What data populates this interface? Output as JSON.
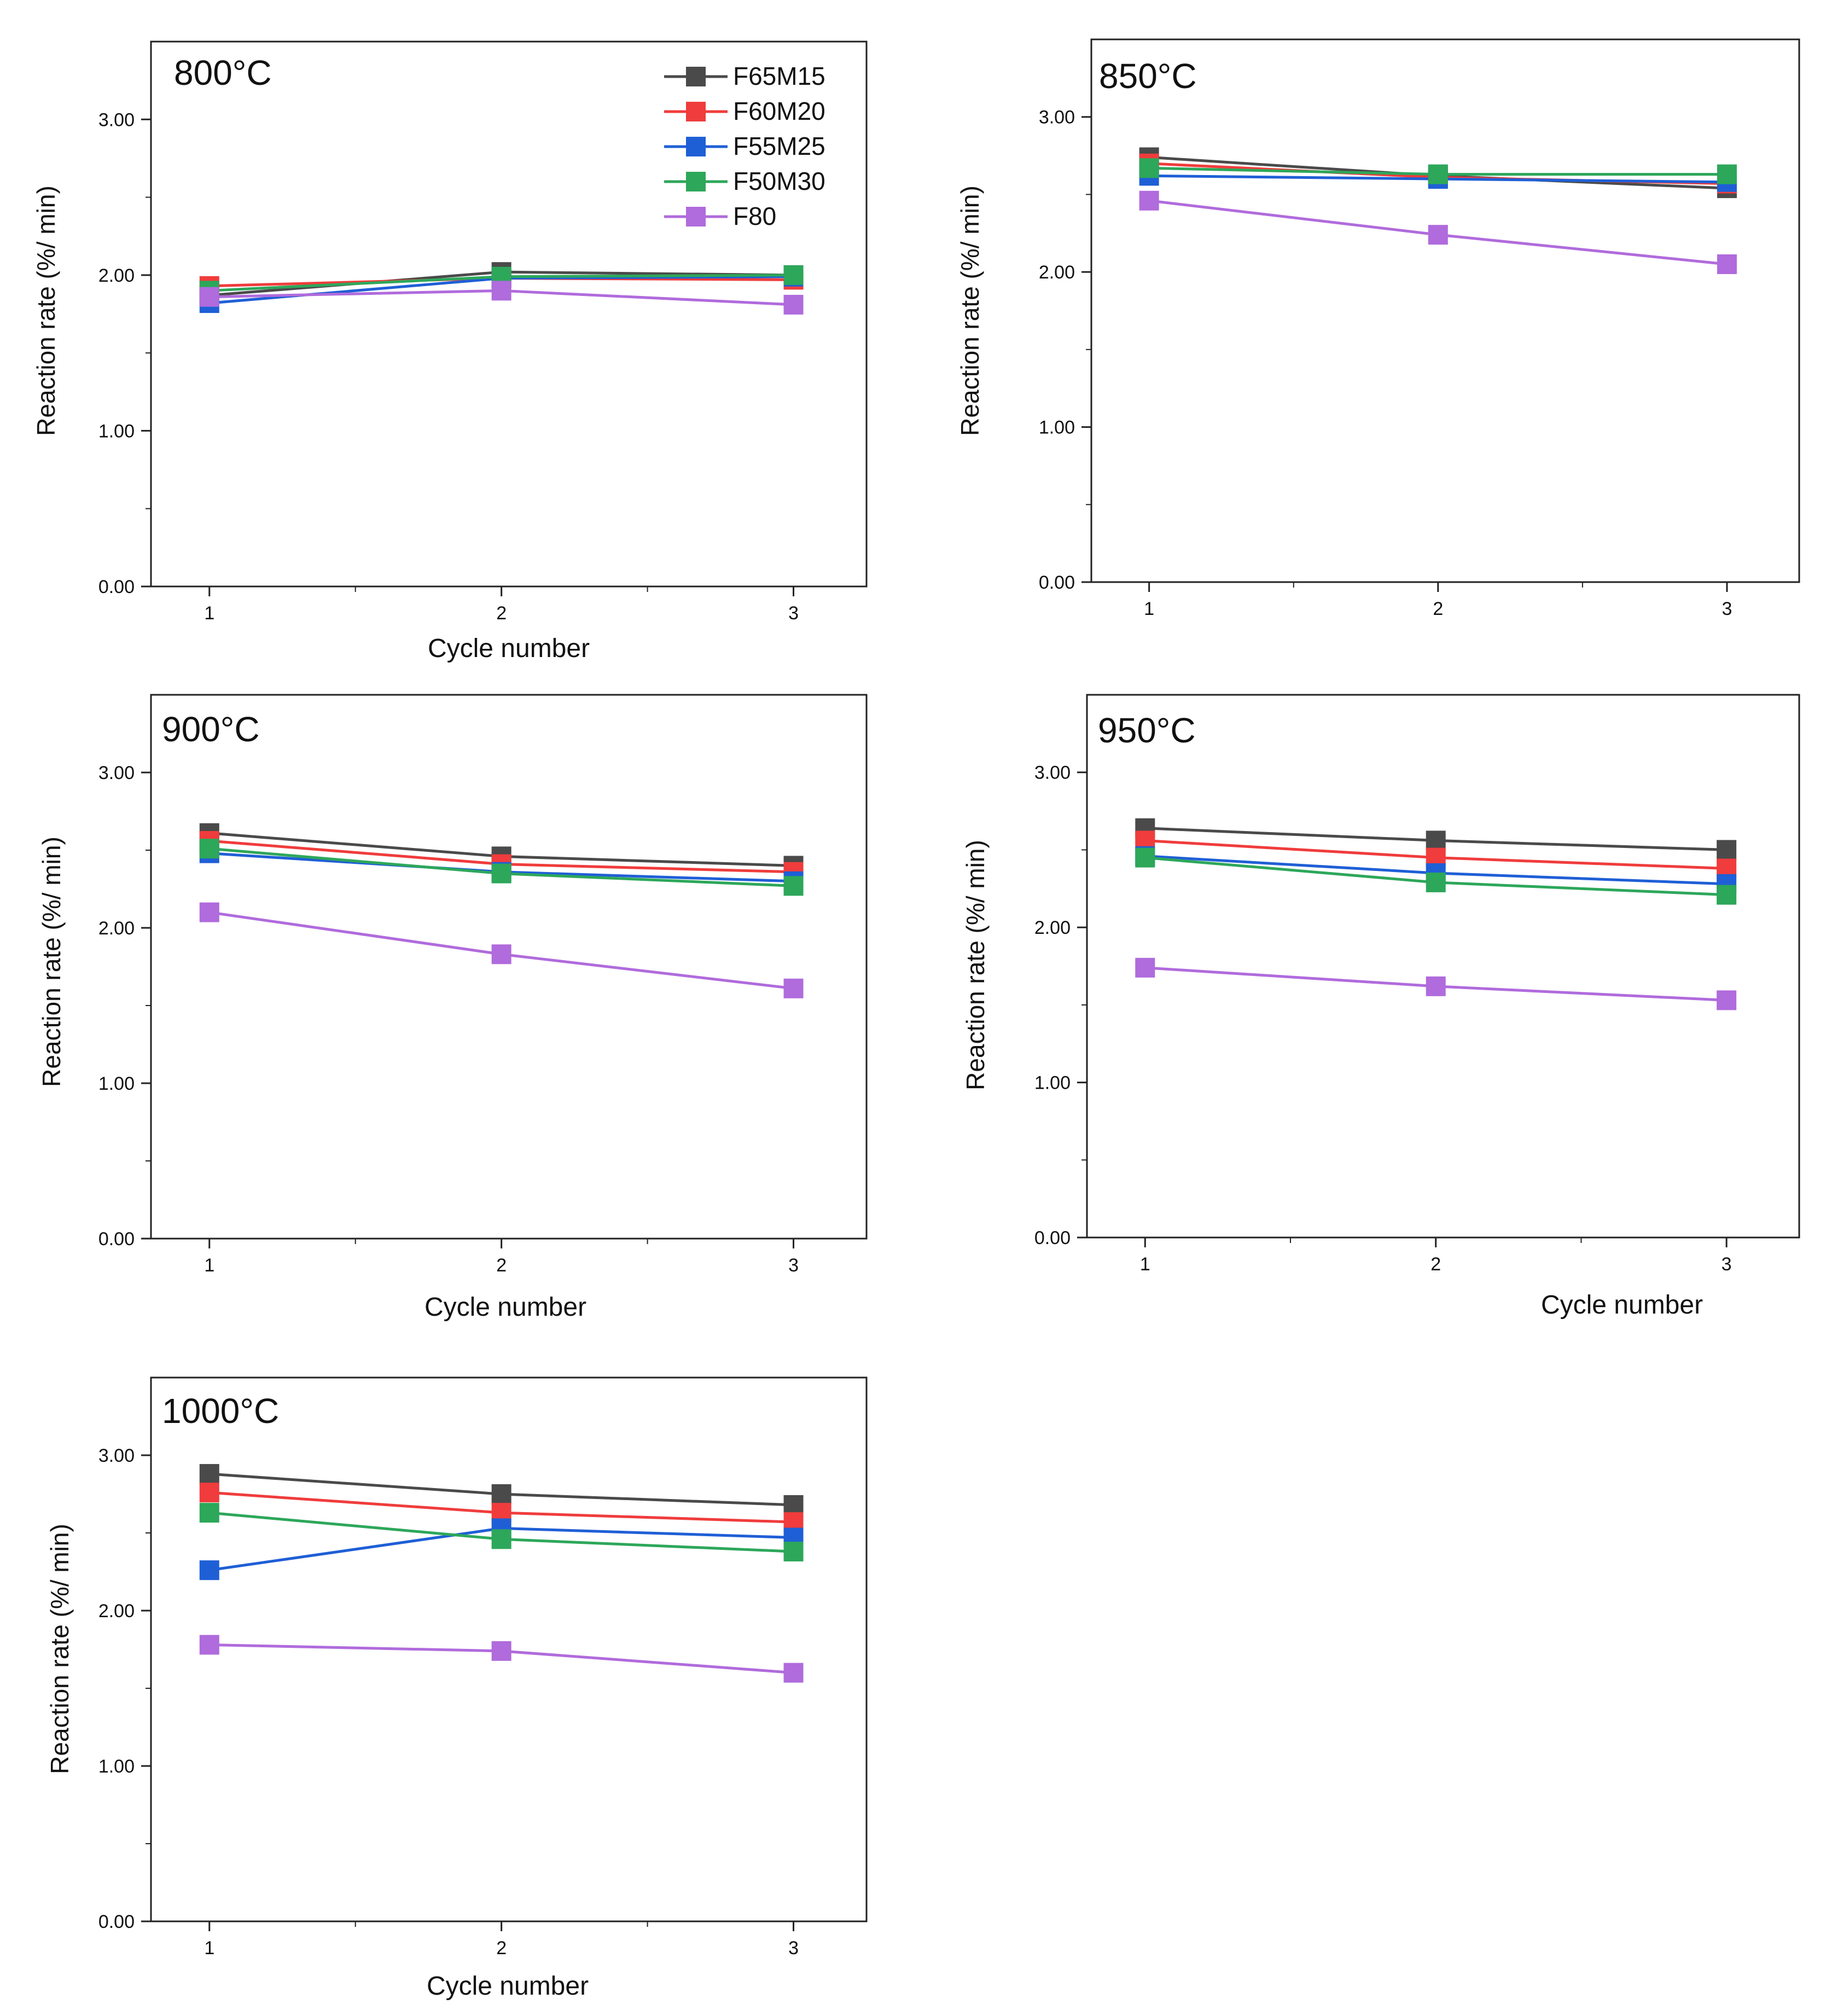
{
  "chart_data": [
    {
      "type": "line",
      "title": "800°C",
      "xlabel": "Cycle number",
      "ylabel": "Reaction rate (%/ min)",
      "x": [
        1,
        2,
        3
      ],
      "xticks": [
        "1",
        "2",
        "3"
      ],
      "yticks": [
        "0.00",
        "1.00",
        "2.00",
        "3.00"
      ],
      "xlim": [
        0.8,
        3.25
      ],
      "ylim": [
        0,
        3.5
      ],
      "legend": "top-right",
      "series": [
        {
          "name": "F65M15",
          "color": "#4a4a4a",
          "values": [
            1.87,
            2.02,
            2.0
          ]
        },
        {
          "name": "F60M20",
          "color": "#f03c3c",
          "values": [
            1.93,
            1.98,
            1.97
          ]
        },
        {
          "name": "F55M25",
          "color": "#1f5fd6",
          "values": [
            1.82,
            1.98,
            1.99
          ]
        },
        {
          "name": "F50M30",
          "color": "#2da75a",
          "values": [
            1.9,
            1.99,
            2.0
          ]
        },
        {
          "name": "F80",
          "color": "#b06bdc",
          "values": [
            1.86,
            1.9,
            1.81
          ]
        }
      ]
    },
    {
      "type": "line",
      "title": "850°C",
      "xlabel": "",
      "ylabel": "Reaction rate (%/ min)",
      "x": [
        1,
        2,
        3
      ],
      "xticks": [
        "1",
        "2",
        "3"
      ],
      "yticks": [
        "0.00",
        "1.00",
        "2.00",
        "3.00"
      ],
      "xlim": [
        0.8,
        3.25
      ],
      "ylim": [
        0,
        3.5
      ],
      "series": [
        {
          "name": "F65M15",
          "color": "#4a4a4a",
          "values": [
            2.74,
            2.62,
            2.54
          ]
        },
        {
          "name": "F60M20",
          "color": "#f03c3c",
          "values": [
            2.7,
            2.61,
            2.57
          ]
        },
        {
          "name": "F55M25",
          "color": "#1f5fd6",
          "values": [
            2.62,
            2.6,
            2.58
          ]
        },
        {
          "name": "F50M30",
          "color": "#2da75a",
          "values": [
            2.67,
            2.63,
            2.63
          ]
        },
        {
          "name": "F80",
          "color": "#b06bdc",
          "values": [
            2.46,
            2.24,
            2.05
          ]
        }
      ]
    },
    {
      "type": "line",
      "title": "900°C",
      "xlabel": "Cycle number",
      "ylabel": "Reaction rate  (%/ min)",
      "x": [
        1,
        2,
        3
      ],
      "xticks": [
        "1",
        "2",
        "3"
      ],
      "yticks": [
        "0.00",
        "1.00",
        "2.00",
        "3.00"
      ],
      "xlim": [
        0.8,
        3.25
      ],
      "ylim": [
        0,
        3.5
      ],
      "series": [
        {
          "name": "F65M15",
          "color": "#4a4a4a",
          "values": [
            2.61,
            2.46,
            2.4
          ]
        },
        {
          "name": "F60M20",
          "color": "#f03c3c",
          "values": [
            2.56,
            2.41,
            2.36
          ]
        },
        {
          "name": "F55M25",
          "color": "#1f5fd6",
          "values": [
            2.48,
            2.36,
            2.3
          ]
        },
        {
          "name": "F50M30",
          "color": "#2da75a",
          "values": [
            2.51,
            2.35,
            2.27
          ]
        },
        {
          "name": "F80",
          "color": "#b06bdc",
          "values": [
            2.1,
            1.83,
            1.61
          ]
        }
      ]
    },
    {
      "type": "line",
      "title": "950°C",
      "xlabel": "Cycle number",
      "ylabel": "Reaction rate (%/ min)",
      "x": [
        1,
        2,
        3
      ],
      "xticks": [
        "1",
        "2",
        "3"
      ],
      "yticks": [
        "0.00",
        "1.00",
        "2.00",
        "3.00"
      ],
      "xlim": [
        0.8,
        3.25
      ],
      "ylim": [
        0,
        3.5
      ],
      "series": [
        {
          "name": "F65M15",
          "color": "#4a4a4a",
          "values": [
            2.64,
            2.56,
            2.5
          ]
        },
        {
          "name": "F60M20",
          "color": "#f03c3c",
          "values": [
            2.56,
            2.45,
            2.38
          ]
        },
        {
          "name": "F55M25",
          "color": "#1f5fd6",
          "values": [
            2.46,
            2.35,
            2.28
          ]
        },
        {
          "name": "F50M30",
          "color": "#2da75a",
          "values": [
            2.45,
            2.29,
            2.21
          ]
        },
        {
          "name": "F80",
          "color": "#b06bdc",
          "values": [
            1.74,
            1.62,
            1.53
          ]
        }
      ]
    },
    {
      "type": "line",
      "title": "1000°C",
      "xlabel": "Cycle number",
      "ylabel": "Reaction rate (%/ min)",
      "x": [
        1,
        2,
        3
      ],
      "xticks": [
        "1",
        "2",
        "3"
      ],
      "yticks": [
        "0.00",
        "1.00",
        "2.00",
        "3.00"
      ],
      "xlim": [
        0.8,
        3.25
      ],
      "ylim": [
        0,
        3.5
      ],
      "series": [
        {
          "name": "F65M15",
          "color": "#4a4a4a",
          "values": [
            2.88,
            2.75,
            2.68
          ]
        },
        {
          "name": "F60M20",
          "color": "#f03c3c",
          "values": [
            2.76,
            2.63,
            2.57
          ]
        },
        {
          "name": "F55M25",
          "color": "#1f5fd6",
          "values": [
            2.26,
            2.53,
            2.47
          ]
        },
        {
          "name": "F50M30",
          "color": "#2da75a",
          "values": [
            2.63,
            2.46,
            2.38
          ]
        },
        {
          "name": "F80",
          "color": "#b06bdc",
          "values": [
            1.78,
            1.74,
            1.6
          ]
        }
      ]
    }
  ]
}
